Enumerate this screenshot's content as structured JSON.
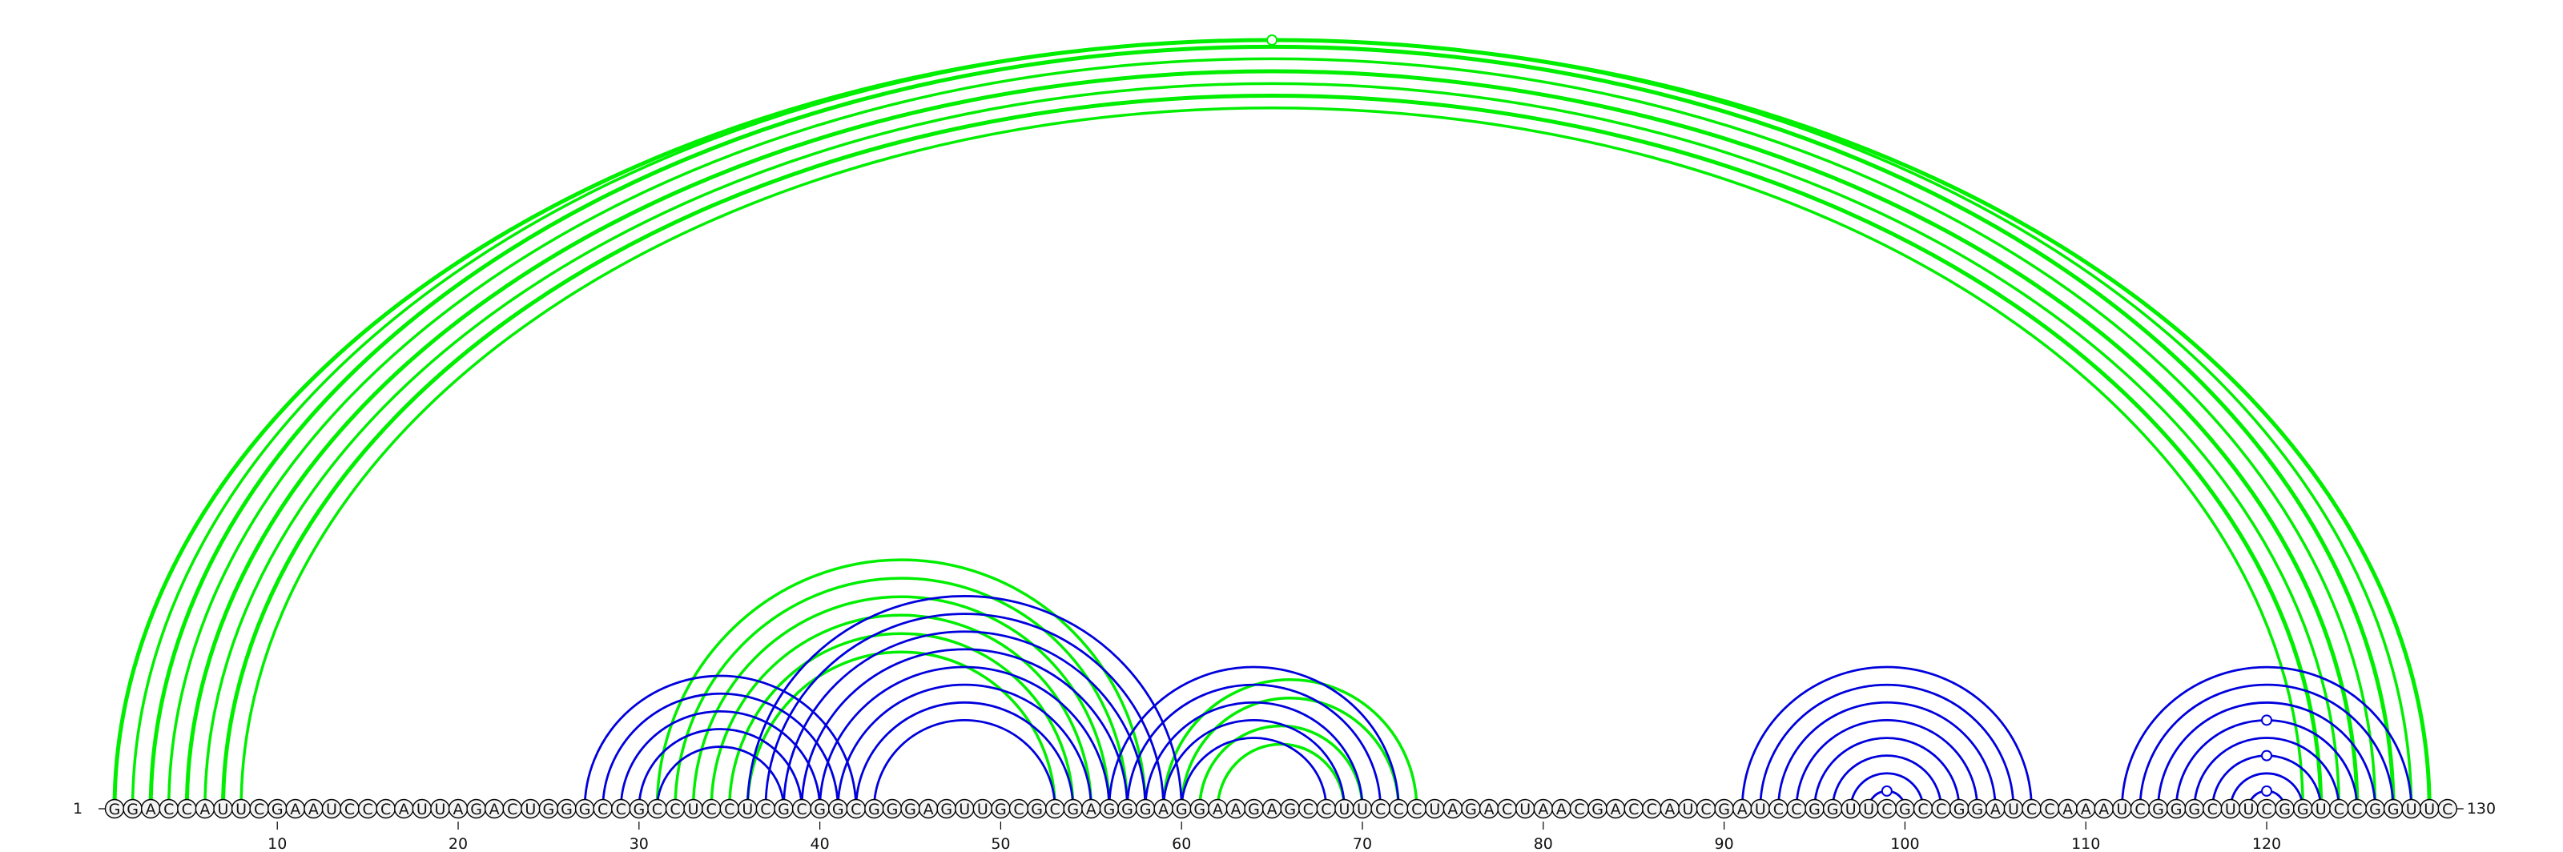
{
  "diagram": {
    "type": "rna-arc-diagram",
    "sequence": "GGACCAUUCGAAUCCCAUUAGACUGGGCCGCCUCCUCGCGGCGGGAGUUGCGCGAGGGAGGAAGAGCCUUCCCUAGACUAACGACCAUCGAUCCGGUUCGCCGGAUCCAAAUCGGGCUUCGGUCCGGUUC",
    "start_label": "1",
    "end_label": "130",
    "ticks": [
      10,
      20,
      30,
      40,
      50,
      60,
      70,
      80,
      90,
      100,
      110,
      120
    ],
    "colors": {
      "upper": "#00ee00",
      "lower": "#0000dd"
    },
    "upper_pairs": [
      [
        1,
        129
      ],
      [
        2,
        128
      ],
      [
        3,
        127
      ],
      [
        4,
        126
      ],
      [
        5,
        125
      ],
      [
        6,
        124
      ],
      [
        7,
        123
      ],
      [
        8,
        122
      ],
      [
        31,
        58
      ],
      [
        32,
        57
      ],
      [
        33,
        56
      ],
      [
        34,
        55
      ],
      [
        35,
        54
      ],
      [
        36,
        53
      ],
      [
        59,
        73
      ],
      [
        60,
        72
      ],
      [
        61,
        70
      ],
      [
        62,
        69
      ]
    ],
    "lower_pairs": [
      [
        27,
        42
      ],
      [
        28,
        41
      ],
      [
        29,
        40
      ],
      [
        30,
        39
      ],
      [
        31,
        38
      ],
      [
        36,
        60
      ],
      [
        37,
        59
      ],
      [
        38,
        58
      ],
      [
        39,
        57
      ],
      [
        40,
        56
      ],
      [
        41,
        55
      ],
      [
        42,
        54
      ],
      [
        43,
        53
      ],
      [
        56,
        72
      ],
      [
        57,
        71
      ],
      [
        58,
        70
      ],
      [
        59,
        69
      ],
      [
        60,
        68
      ],
      [
        91,
        107
      ],
      [
        92,
        106
      ],
      [
        93,
        105
      ],
      [
        94,
        104
      ],
      [
        95,
        103
      ],
      [
        96,
        102
      ],
      [
        97,
        101
      ],
      [
        98,
        100
      ],
      [
        112,
        128
      ],
      [
        113,
        127
      ],
      [
        114,
        126
      ],
      [
        115,
        125
      ],
      [
        116,
        124
      ],
      [
        117,
        123
      ],
      [
        118,
        122
      ],
      [
        119,
        121
      ]
    ]
  }
}
